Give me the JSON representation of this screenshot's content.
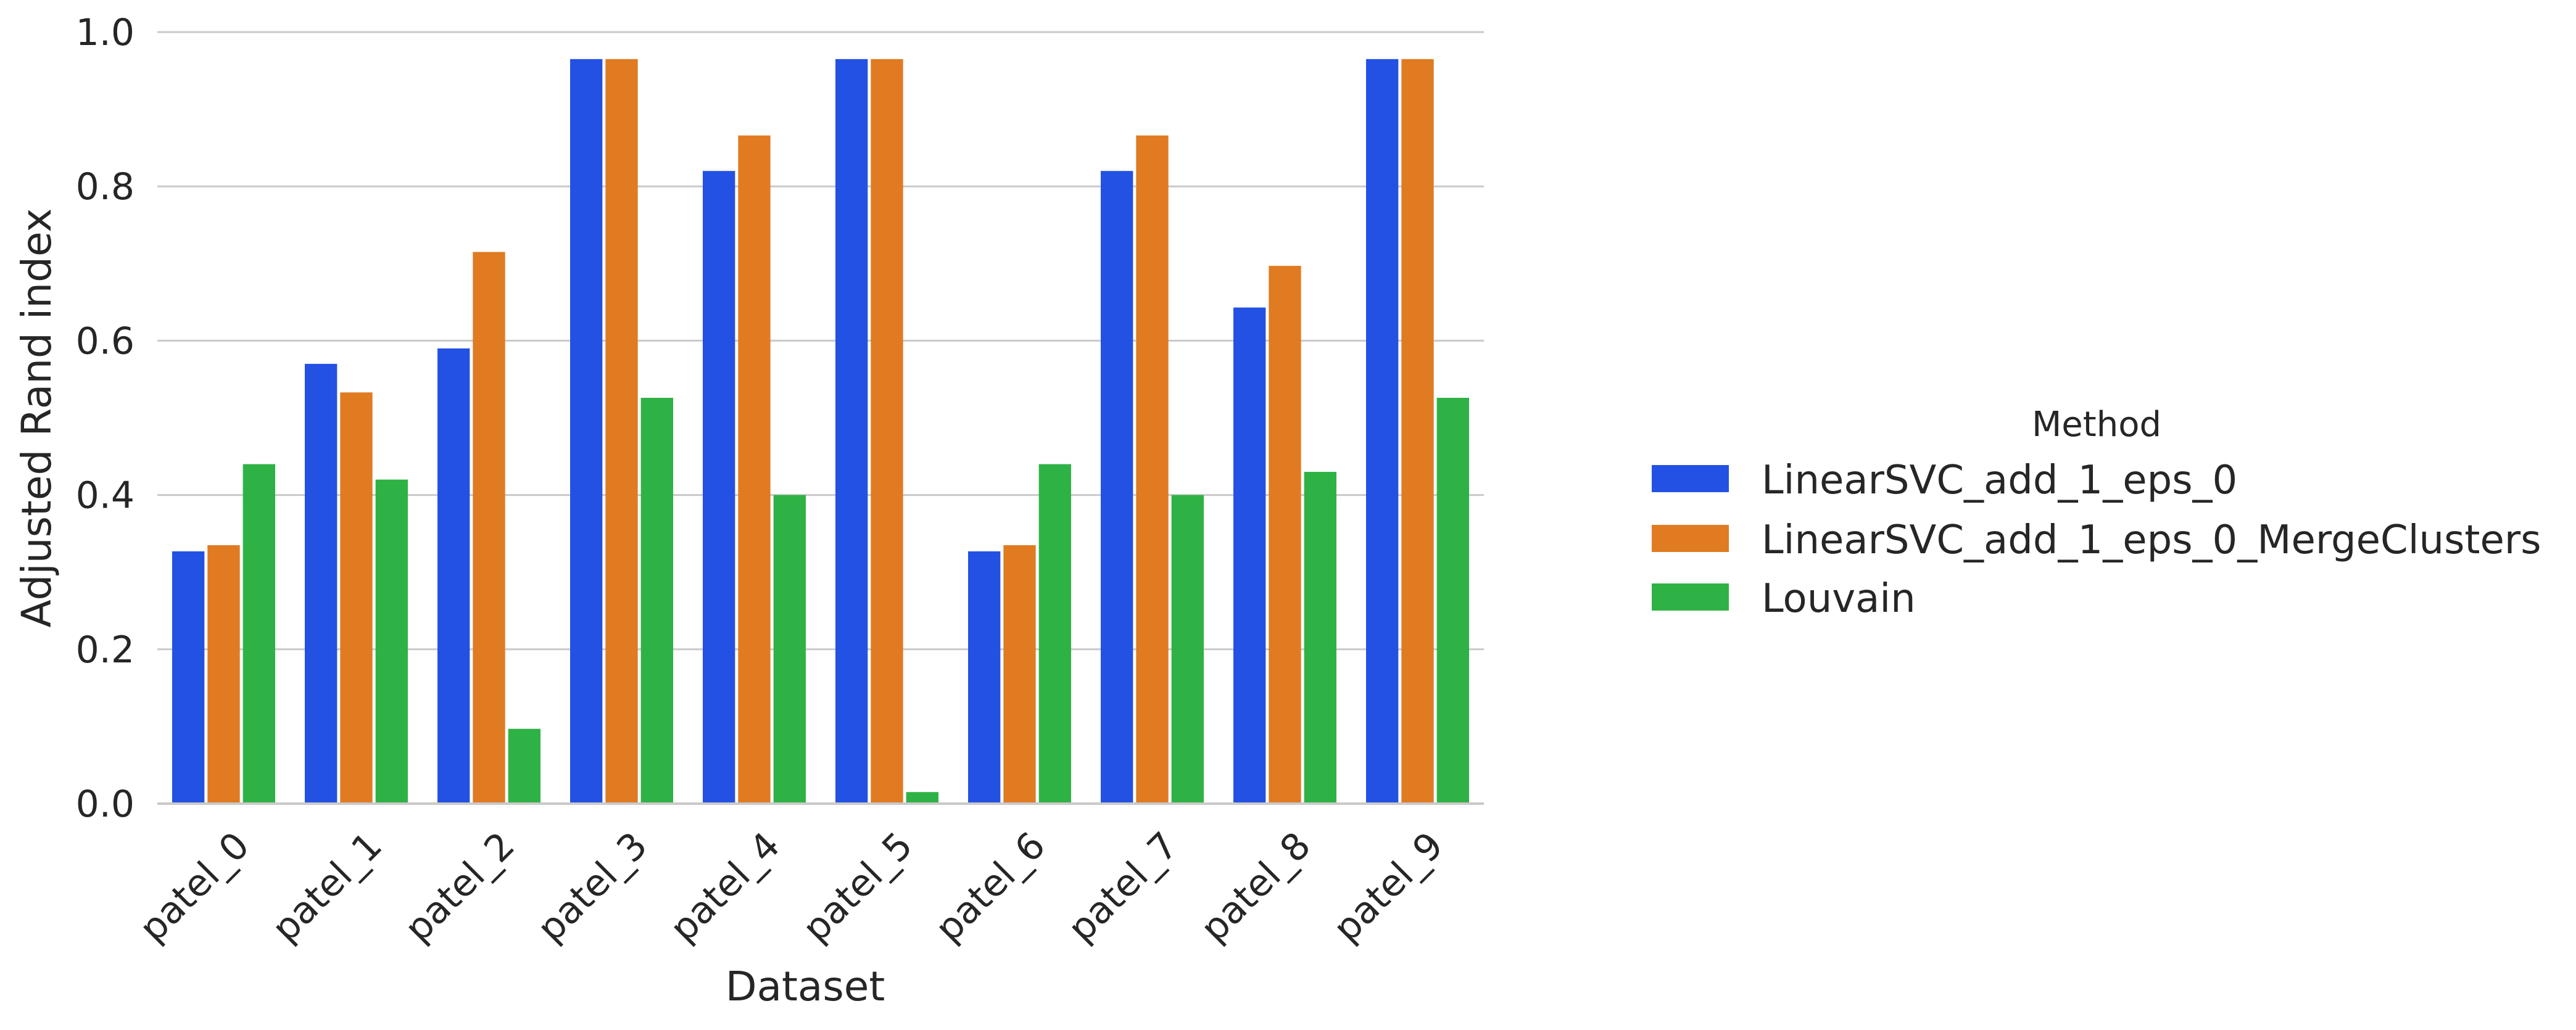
{
  "chart_data": {
    "type": "bar",
    "xlabel": "Dataset",
    "ylabel": "Adjusted Rand index",
    "categories": [
      "patel_0",
      "patel_1",
      "patel_2",
      "patel_3",
      "patel_4",
      "patel_5",
      "patel_6",
      "patel_7",
      "patel_8",
      "patel_9"
    ],
    "ylim": [
      0,
      1.0
    ],
    "yticks": [
      "0.0",
      "0.2",
      "0.4",
      "0.6",
      "0.8",
      "1.0"
    ],
    "grid": "horizontal",
    "legend": {
      "title": "Method",
      "placement": "right"
    },
    "series": [
      {
        "name": "LinearSVC_add_1_eps_0",
        "color": "#2351e3",
        "values": [
          0.327,
          0.57,
          0.59,
          0.965,
          0.82,
          0.965,
          0.327,
          0.82,
          0.643,
          0.965
        ]
      },
      {
        "name": "LinearSVC_add_1_eps_0_MergeClusters",
        "color": "#e07b22",
        "values": [
          0.335,
          0.533,
          0.715,
          0.965,
          0.866,
          0.965,
          0.335,
          0.866,
          0.697,
          0.965
        ]
      },
      {
        "name": "Louvain",
        "color": "#2fb245",
        "values": [
          0.44,
          0.42,
          0.097,
          0.526,
          0.4,
          0.015,
          0.44,
          0.4,
          0.43,
          0.526
        ]
      }
    ]
  }
}
